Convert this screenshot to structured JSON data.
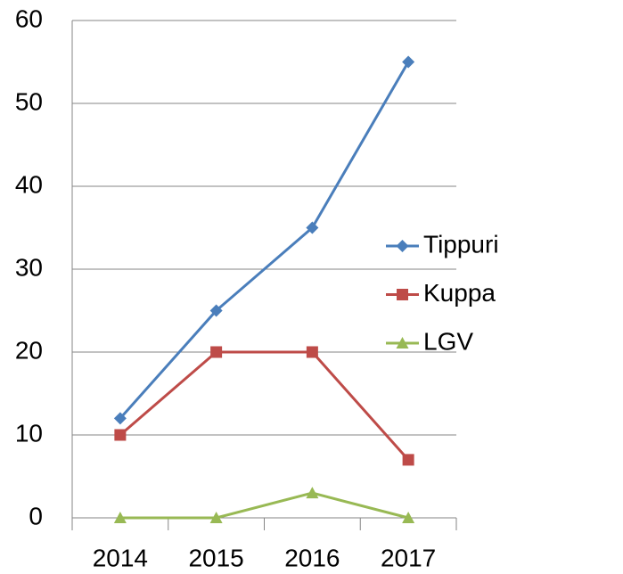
{
  "chart_data": {
    "type": "line",
    "categories": [
      "2014",
      "2015",
      "2016",
      "2017"
    ],
    "series": [
      {
        "name": "Tippuri",
        "color": "#4a7ebb",
        "marker": "diamond",
        "values": [
          12,
          25,
          35,
          55
        ]
      },
      {
        "name": "Kuppa",
        "color": "#be4b48",
        "marker": "square",
        "values": [
          10,
          20,
          20,
          7
        ]
      },
      {
        "name": "LGV",
        "color": "#98b954",
        "marker": "triangle",
        "values": [
          0,
          0,
          3,
          0
        ]
      }
    ],
    "ylim": [
      0,
      60
    ],
    "yticks": [
      0,
      10,
      20,
      30,
      40,
      50,
      60
    ],
    "grid": true,
    "legend": "right"
  }
}
